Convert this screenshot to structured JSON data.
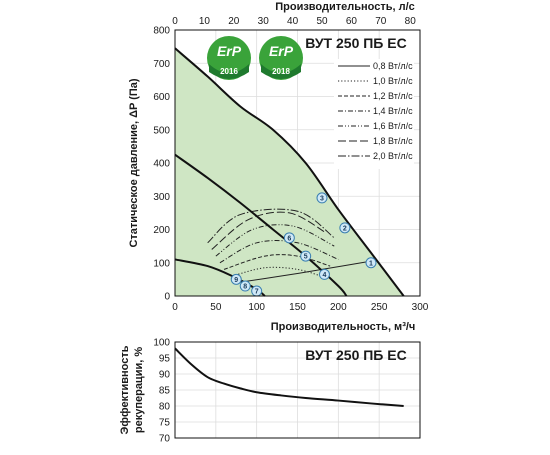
{
  "top_axis_label": "Производительность, л/с",
  "bottom_axis_label": "Производительность, м³/ч",
  "top_chart_ylabel": "Статическое давление, ΔP (Па)",
  "bottom_chart_ylabel_line1": "Эффективность",
  "bottom_chart_ylabel_line2": "рекуперации, %",
  "model_label_top": "ВУТ 250 ПБ ЕС",
  "model_label_bottom": "ВУТ 250 ПБ ЕС",
  "badges": [
    {
      "text": "ErP",
      "year": "2016"
    },
    {
      "text": "ErP",
      "year": "2018"
    }
  ],
  "colors": {
    "shade": "#cfe6c4",
    "curve": "#111111",
    "badge_green": "#3aa33a",
    "badge_dark": "#1f7a2e",
    "marker_fill": "#cfe8f7",
    "marker_stroke": "#3a7fb0"
  },
  "chart_data": [
    {
      "type": "line",
      "xlabel": "Производительность, м³/ч",
      "x2label": "Производительность, л/с",
      "ylabel": "Статическое давление, ΔP (Па)",
      "xlim": [
        0,
        300
      ],
      "x2lim": [
        0,
        83.33
      ],
      "ylim": [
        0,
        800
      ],
      "xticks": [
        0,
        50,
        100,
        150,
        200,
        250,
        300
      ],
      "x2ticks": [
        0,
        10,
        20,
        30,
        40,
        50,
        60,
        70,
        80
      ],
      "yticks": [
        0,
        100,
        200,
        300,
        400,
        500,
        600,
        700,
        800
      ],
      "grid": true,
      "series": [
        {
          "x": [
            0,
            40,
            80,
            120,
            160,
            200,
            240,
            280
          ],
          "y": [
            745,
            660,
            570,
            500,
            400,
            260,
            130,
            0
          ]
        },
        {
          "x": [
            0,
            40,
            80,
            120,
            160,
            200,
            210
          ],
          "y": [
            425,
            355,
            280,
            200,
            120,
            30,
            0
          ]
        },
        {
          "x": [
            0,
            40,
            70,
            100,
            110
          ],
          "y": [
            110,
            90,
            60,
            20,
            0
          ]
        }
      ],
      "spf_legend_title": "",
      "spf_curves": [
        {
          "name": "0,8 Вт/л/с",
          "style": "solid",
          "x": [
            75,
            130,
            180,
            240
          ],
          "y": [
            40,
            60,
            80,
            105
          ]
        },
        {
          "name": "1,0 Вт/л/с",
          "style": "dotted",
          "x": [
            70,
            110,
            150,
            185
          ],
          "y": [
            60,
            85,
            80,
            55
          ]
        },
        {
          "name": "1,2 Вт/л/с",
          "style": "dashed",
          "x": [
            60,
            110,
            150,
            190
          ],
          "y": [
            80,
            120,
            120,
            90
          ]
        },
        {
          "name": "1,4 Вт/л/с",
          "style": "dash-dot",
          "x": [
            55,
            100,
            150,
            200
          ],
          "y": [
            100,
            160,
            160,
            110
          ]
        },
        {
          "name": "1,6 Вт/л/с",
          "style": "dash-dot-dot",
          "x": [
            50,
            95,
            145,
            195
          ],
          "y": [
            120,
            200,
            210,
            150
          ]
        },
        {
          "name": "1,8 Вт/л/с",
          "style": "long-dash",
          "x": [
            45,
            90,
            140,
            185
          ],
          "y": [
            140,
            230,
            250,
            190
          ]
        },
        {
          "name": "2,0 Вт/л/с",
          "style": "long-dash-dot",
          "x": [
            40,
            80,
            150,
            195
          ],
          "y": [
            160,
            245,
            255,
            175
          ]
        }
      ],
      "operating_points": [
        {
          "label": "1",
          "x": 240,
          "y": 100
        },
        {
          "label": "2",
          "x": 208,
          "y": 205
        },
        {
          "label": "3",
          "x": 180,
          "y": 295
        },
        {
          "label": "4",
          "x": 183,
          "y": 65
        },
        {
          "label": "5",
          "x": 160,
          "y": 120
        },
        {
          "label": "6",
          "x": 140,
          "y": 175
        },
        {
          "label": "7",
          "x": 100,
          "y": 15
        },
        {
          "label": "8",
          "x": 86,
          "y": 30
        },
        {
          "label": "9",
          "x": 75,
          "y": 50
        }
      ]
    },
    {
      "type": "line",
      "xlabel": "",
      "ylabel": "Эффективность рекуперации, %",
      "xlim": [
        0,
        300
      ],
      "ylim": [
        70,
        100
      ],
      "yticks": [
        70,
        75,
        80,
        85,
        90,
        95,
        100
      ],
      "grid": true,
      "series": [
        {
          "x": [
            0,
            20,
            40,
            60,
            80,
            100,
            130,
            160,
            200,
            240,
            280
          ],
          "y": [
            98,
            93,
            89,
            87,
            85.5,
            84.3,
            83.3,
            82.5,
            81.7,
            80.8,
            80
          ]
        }
      ]
    }
  ]
}
